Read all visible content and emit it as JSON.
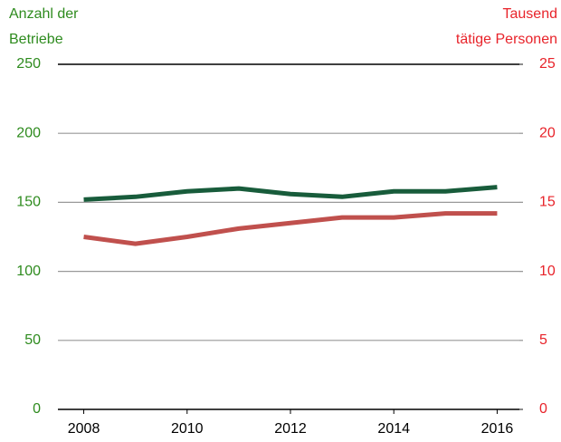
{
  "chart_data": {
    "type": "line",
    "y_label": [
      "Anzahl der",
      "Betriebe"
    ],
    "y2_label": [
      "Tausend",
      "tätige Personen"
    ],
    "x": [
      2008,
      2009,
      2010,
      2011,
      2012,
      2013,
      2014,
      2015,
      2016
    ],
    "xlim": [
      2007.5,
      2016.5
    ],
    "xticks": [
      2008,
      2010,
      2012,
      2014,
      2016
    ],
    "ylim": [
      0,
      250
    ],
    "yticks": [
      0,
      50,
      100,
      150,
      200,
      250
    ],
    "y2lim": [
      0,
      25
    ],
    "y2ticks": [
      0,
      5,
      10,
      15,
      20,
      25
    ],
    "y_color": "#2e8b1e",
    "y2_color": "#e8232a",
    "grid": true,
    "series": [
      {
        "name": "Anzahl der Betriebe",
        "color": "#185c3b",
        "values": [
          152,
          154,
          158,
          160,
          156,
          154,
          158,
          158,
          161
        ]
      },
      {
        "name": "Tausend tätige Personen",
        "color": "#c0504d",
        "axis": "y2",
        "values": [
          12.5,
          12.0,
          12.5,
          13.1,
          13.5,
          13.9,
          13.9,
          14.2,
          14.2
        ]
      }
    ]
  }
}
